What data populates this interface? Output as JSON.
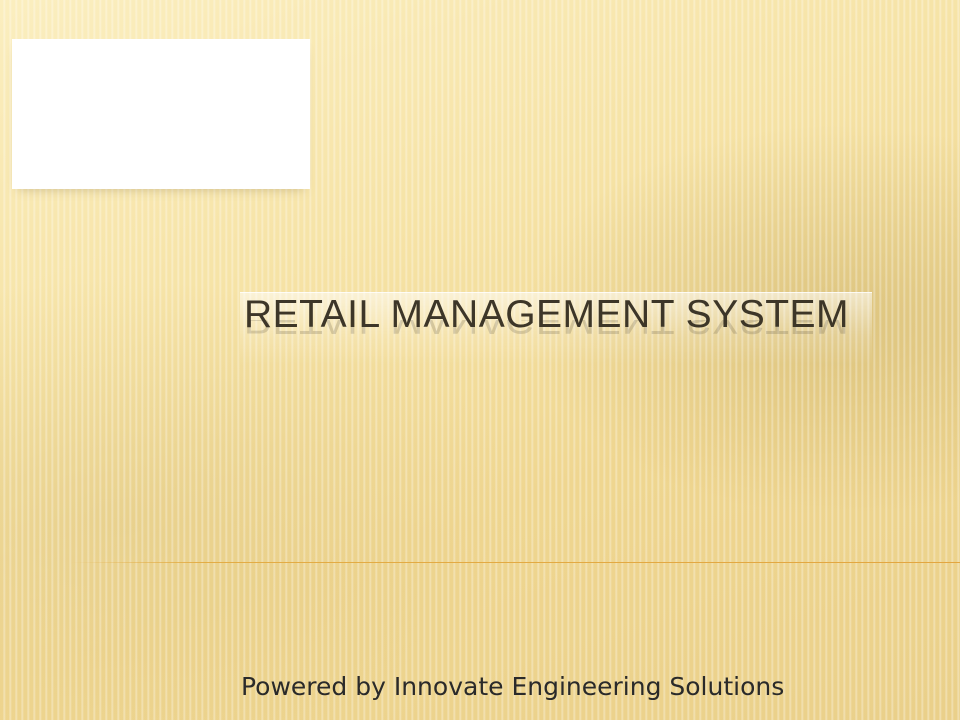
{
  "slide": {
    "title": "RETAIL MANAGEMENT SYSTEM",
    "subtitle": "Powered by Innovate Engineering Solutions"
  },
  "colors": {
    "background": "#f6e3a6",
    "title_text": "#3d3628",
    "subtitle_text": "#2a2a2a",
    "accent_line": "#e3a640",
    "logo_placeholder": "#ffffff"
  }
}
